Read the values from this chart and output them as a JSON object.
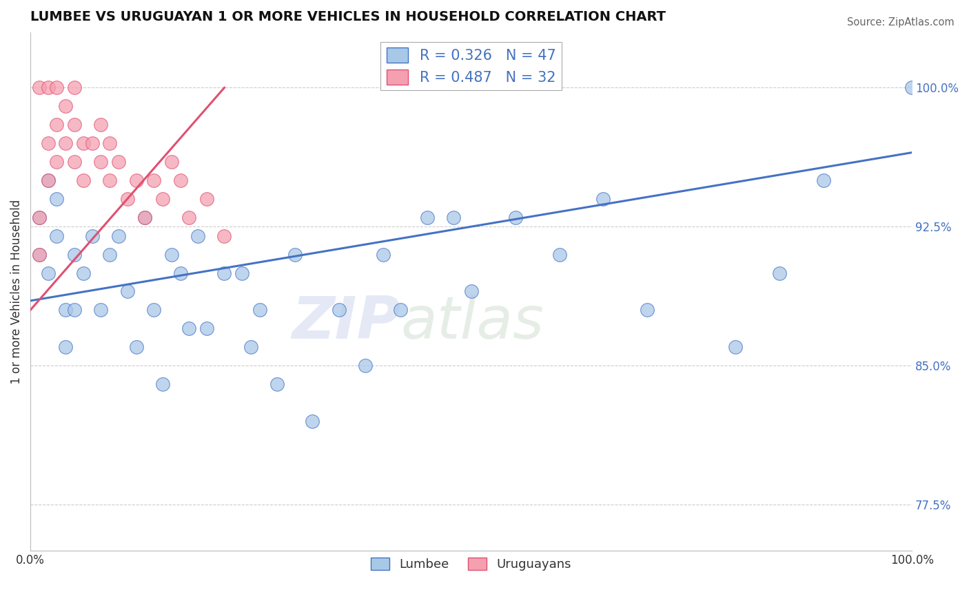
{
  "title": "LUMBEE VS URUGUAYAN 1 OR MORE VEHICLES IN HOUSEHOLD CORRELATION CHART",
  "source": "Source: ZipAtlas.com",
  "ylabel": "1 or more Vehicles in Household",
  "lumbee_R": 0.326,
  "lumbee_N": 47,
  "uruguayan_R": 0.487,
  "uruguayan_N": 32,
  "xlim": [
    0,
    100
  ],
  "ylim": [
    75,
    103
  ],
  "yticks": [
    77.5,
    85.0,
    92.5,
    100.0
  ],
  "ytick_labels": [
    "77.5%",
    "85.0%",
    "92.5%",
    "100.0%"
  ],
  "lumbee_color": "#a8c8e8",
  "uruguayan_color": "#f4a0b0",
  "lumbee_line_color": "#4472c4",
  "uruguayan_line_color": "#e05070",
  "background_color": "#ffffff",
  "watermark_zip": "ZIP",
  "watermark_atlas": "atlas",
  "lumbee_x": [
    1,
    1,
    2,
    2,
    3,
    3,
    4,
    4,
    5,
    5,
    6,
    7,
    8,
    9,
    10,
    11,
    12,
    13,
    14,
    15,
    16,
    17,
    18,
    19,
    20,
    22,
    24,
    25,
    26,
    28,
    30,
    32,
    35,
    38,
    40,
    42,
    45,
    48,
    50,
    55,
    60,
    65,
    70,
    80,
    85,
    90,
    100
  ],
  "lumbee_y": [
    93,
    91,
    95,
    90,
    94,
    92,
    88,
    86,
    91,
    88,
    90,
    92,
    88,
    91,
    92,
    89,
    86,
    93,
    88,
    84,
    91,
    90,
    87,
    92,
    87,
    90,
    90,
    86,
    88,
    84,
    91,
    82,
    88,
    85,
    91,
    88,
    93,
    93,
    89,
    93,
    91,
    94,
    88,
    86,
    90,
    95,
    100
  ],
  "uruguayan_x": [
    1,
    1,
    1,
    2,
    2,
    2,
    3,
    3,
    3,
    4,
    4,
    5,
    5,
    5,
    6,
    6,
    7,
    8,
    8,
    9,
    9,
    10,
    11,
    12,
    13,
    14,
    15,
    16,
    17,
    18,
    20,
    22
  ],
  "uruguayan_y": [
    91,
    93,
    100,
    95,
    97,
    100,
    96,
    98,
    100,
    97,
    99,
    96,
    98,
    100,
    95,
    97,
    97,
    96,
    98,
    95,
    97,
    96,
    94,
    95,
    93,
    95,
    94,
    96,
    95,
    93,
    94,
    92
  ],
  "lumbee_trendline_x": [
    0,
    100
  ],
  "lumbee_trendline_y": [
    88.5,
    96.5
  ],
  "uruguayan_trendline_x": [
    0,
    22
  ],
  "uruguayan_trendline_y": [
    88.0,
    100.0
  ]
}
